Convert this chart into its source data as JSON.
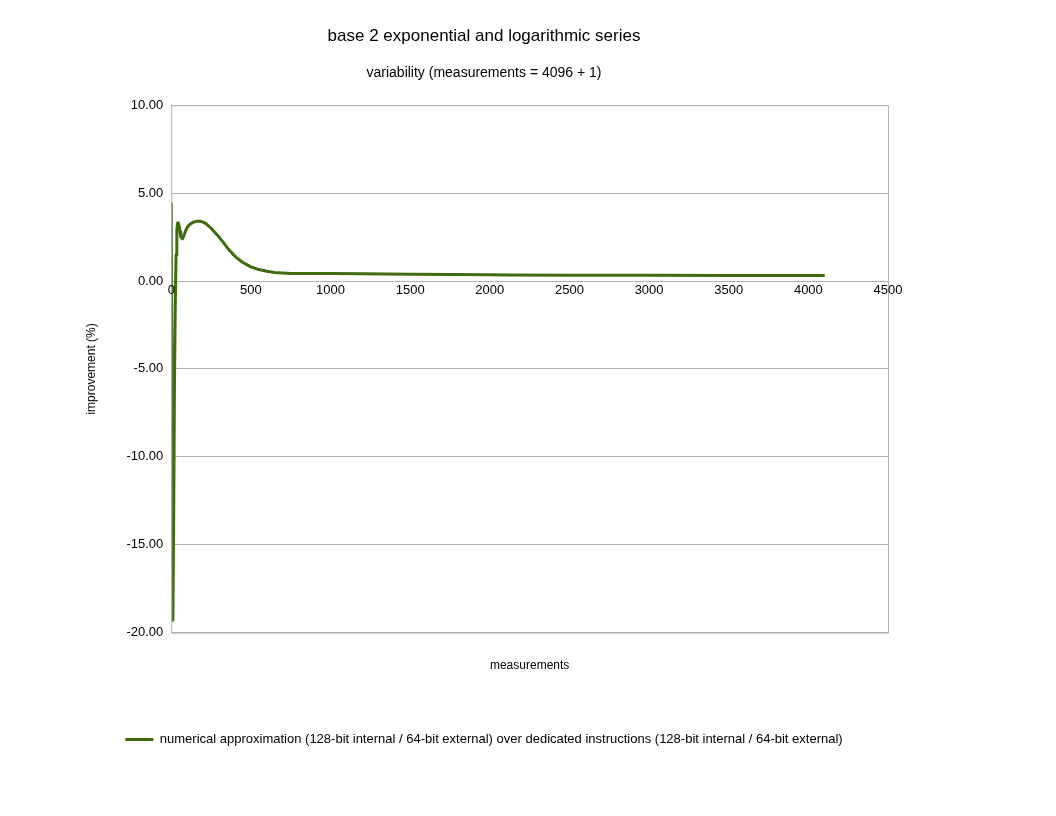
{
  "chart_data": {
    "type": "line",
    "title": "base 2 exponential and logarithmic series",
    "subtitle": "variability (measurements = 4096 + 1)",
    "xlabel": "measurements",
    "ylabel": "improvement (%)",
    "series": [
      {
        "name": "numerical approximation (128-bit internal / 64-bit external) over dedicated instructions (128-bit internal / 64-bit external)",
        "color": "#3d6b0e",
        "x": [
          0,
          5,
          10,
          15,
          20,
          25,
          30,
          35,
          40,
          45,
          50,
          55,
          60,
          70,
          80,
          90,
          100,
          120,
          140,
          160,
          180,
          200,
          220,
          250,
          280,
          300,
          330,
          360,
          390,
          420,
          450,
          480,
          500,
          550,
          600,
          650,
          700,
          750,
          800,
          900,
          1000,
          1200,
          1500,
          2000,
          2500,
          3000,
          3500,
          4096
        ],
        "values": [
          4.4,
          -8,
          -19.3,
          -14,
          -6,
          -1.5,
          1.5,
          2.9,
          3.3,
          3.3,
          3.1,
          2.8,
          2.5,
          2.4,
          2.6,
          2.85,
          3.05,
          3.25,
          3.35,
          3.4,
          3.4,
          3.35,
          3.25,
          3.0,
          2.7,
          2.5,
          2.15,
          1.8,
          1.5,
          1.25,
          1.05,
          0.9,
          0.8,
          0.65,
          0.55,
          0.48,
          0.45,
          0.43,
          0.42,
          0.42,
          0.42,
          0.41,
          0.39,
          0.35,
          0.33,
          0.32,
          0.31,
          0.31
        ]
      }
    ],
    "xlim": [
      0,
      4500
    ],
    "xticks": [
      0,
      500,
      1000,
      1500,
      2000,
      2500,
      3000,
      3500,
      4000,
      4500
    ],
    "ylim": [
      -20,
      10
    ],
    "yticks": [
      {
        "value": -20,
        "label": "-20.00"
      },
      {
        "value": -15,
        "label": "-15.00"
      },
      {
        "value": -10,
        "label": "-10.00"
      },
      {
        "value": -5,
        "label": "-5.00"
      },
      {
        "value": 0,
        "label": "0.00"
      },
      {
        "value": 5,
        "label": "5.00"
      },
      {
        "value": 10,
        "label": "10.00"
      }
    ],
    "grid": "y",
    "legend": "bottom",
    "marker": "none",
    "line_style": "solid"
  }
}
